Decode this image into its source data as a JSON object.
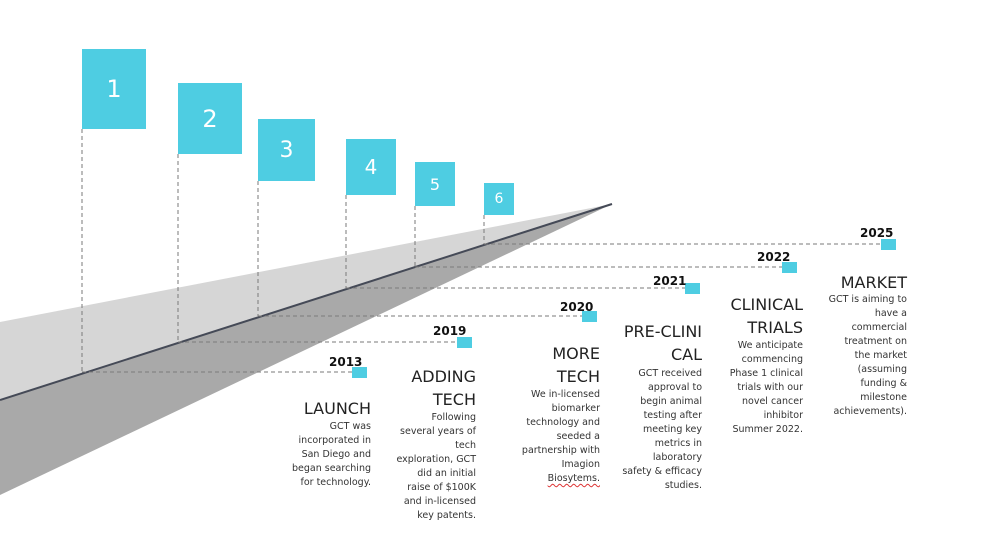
{
  "milestones": [
    {
      "flag": "1",
      "year": "2013",
      "title": [
        "LAUNCH"
      ],
      "desc": [
        "GCT was",
        "incorporated in",
        "San Diego and",
        "began searching",
        "for technology."
      ]
    },
    {
      "flag": "2",
      "year": "2019",
      "title": [
        "ADDING",
        "TECH"
      ],
      "desc": [
        "Following",
        "several years of",
        "tech",
        "exploration, GCT",
        "did an initial",
        "raise of $100K",
        "and in-licensed",
        "key patents."
      ]
    },
    {
      "flag": "3",
      "year": "2020",
      "title": [
        "MORE",
        "TECH"
      ],
      "desc": [
        "We in-licensed",
        "biomarker",
        "technology and",
        "seeded a",
        "partnership with",
        "Imagion",
        "Biosytems."
      ]
    },
    {
      "flag": "4",
      "year": "2021",
      "title": [
        "PRE-CLINI",
        "CAL"
      ],
      "desc": [
        "GCT received",
        "approval to",
        "begin animal",
        "testing after",
        "meeting key",
        "metrics in",
        "laboratory",
        "safety & efficacy",
        "studies."
      ]
    },
    {
      "flag": "5",
      "year": "2022",
      "title": [
        "CLINICAL",
        "TRIALS"
      ],
      "desc": [
        "We anticipate",
        "commencing",
        "Phase 1 clinical",
        "trials with our",
        "novel cancer",
        "inhibitor",
        "Summer 2022."
      ]
    },
    {
      "flag": "6",
      "year": "2025",
      "title": [
        "MARKET"
      ],
      "desc": [
        "GCT is aiming to",
        "have a",
        "commercial",
        "treatment on",
        "the market",
        "(assuming",
        "funding &",
        "milestone",
        "achievements)."
      ]
    }
  ],
  "colors": {
    "accent": "#4ecde2",
    "road_light": "#d6d6d6",
    "road_dark": "#a9a9a9",
    "road_line": "#454a57",
    "guide": "#7a7a7a"
  }
}
